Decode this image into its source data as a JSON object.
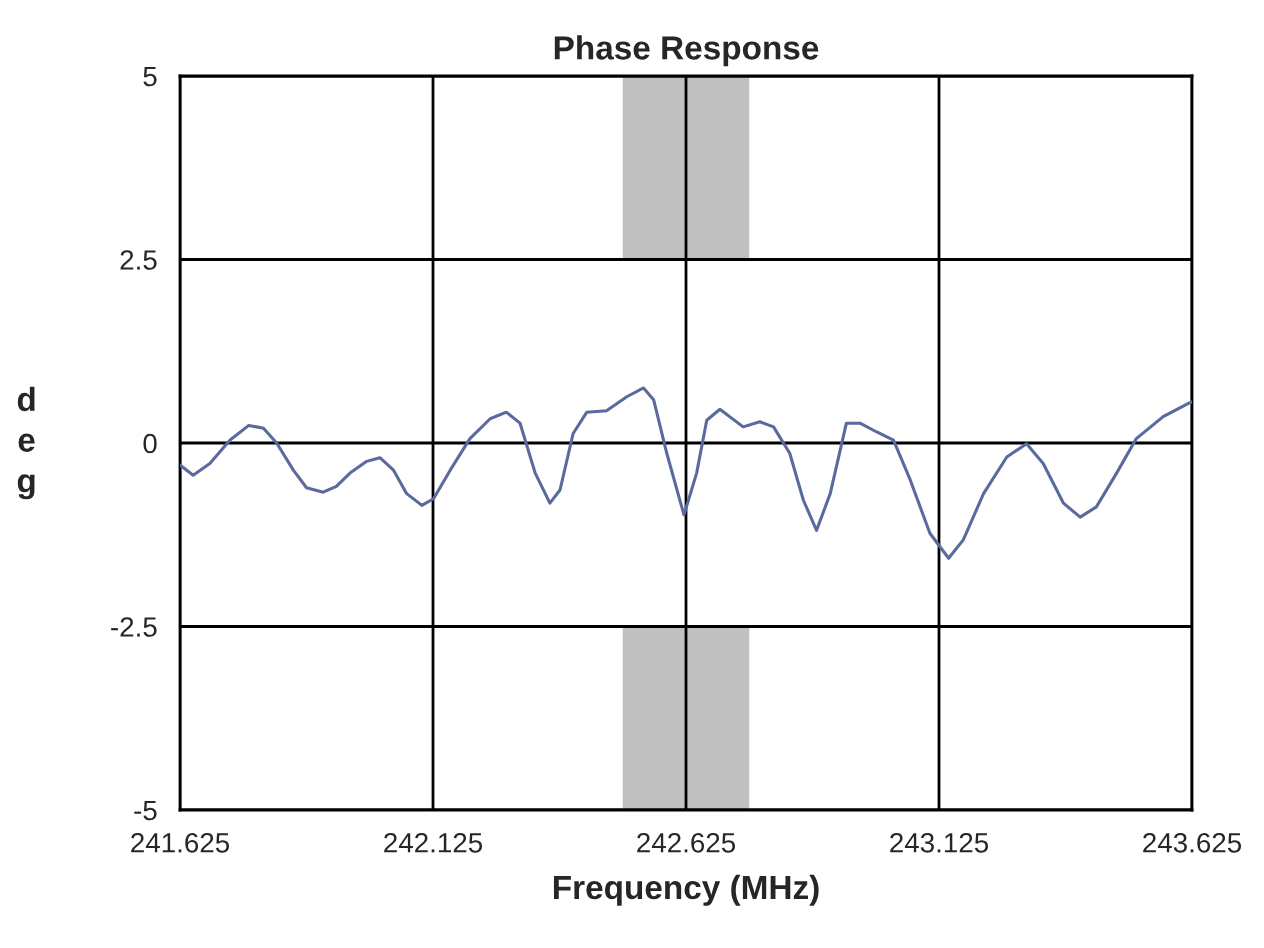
{
  "chart_data": {
    "type": "line",
    "title": "Phase Response",
    "xlabel": "Frequency (MHz)",
    "ylabel": "deg",
    "x": [
      241.625,
      241.651,
      241.684,
      241.724,
      241.761,
      241.79,
      241.816,
      241.849,
      241.875,
      241.908,
      241.934,
      241.961,
      241.994,
      242.02,
      242.047,
      242.073,
      242.103,
      242.126,
      242.159,
      242.198,
      242.238,
      242.27,
      242.297,
      242.327,
      242.356,
      242.376,
      242.402,
      242.429,
      242.468,
      242.508,
      242.541,
      242.561,
      242.587,
      242.621,
      242.646,
      242.666,
      242.692,
      242.738,
      242.771,
      242.798,
      242.83,
      242.857,
      242.883,
      242.91,
      242.942,
      242.969,
      243.002,
      243.035,
      243.068,
      243.107,
      243.144,
      243.173,
      243.213,
      243.259,
      243.298,
      243.331,
      243.371,
      243.404,
      243.436,
      243.476,
      243.515,
      243.568,
      243.618,
      243.625
    ],
    "series": [
      {
        "color": "#5a6a9e",
        "values": [
          -0.3,
          -0.44,
          -0.28,
          0.04,
          0.24,
          0.2,
          0,
          -0.37,
          -0.61,
          -0.67,
          -0.59,
          -0.41,
          -0.25,
          -0.2,
          -0.37,
          -0.69,
          -0.85,
          -0.76,
          -0.37,
          0.06,
          0.33,
          0.42,
          0.27,
          -0.41,
          -0.82,
          -0.64,
          0.13,
          0.42,
          0.44,
          0.63,
          0.75,
          0.59,
          -0.14,
          -0.98,
          -0.41,
          0.31,
          0.46,
          0.22,
          0.29,
          0.22,
          -0.14,
          -0.78,
          -1.19,
          -0.69,
          0.27,
          0.27,
          0.15,
          0.04,
          -0.5,
          -1.23,
          -1.57,
          -1.32,
          -0.69,
          -0.19,
          -0.01,
          -0.28,
          -0.82,
          -1.01,
          -0.87,
          -0.41,
          0.06,
          0.36,
          0.54,
          0.56
        ]
      }
    ],
    "xlim": [
      241.625,
      243.625
    ],
    "xticks": [
      {
        "value": 241.625,
        "label": "241.625"
      },
      {
        "value": 242.125,
        "label": "242.125"
      },
      {
        "value": 242.625,
        "label": "242.625"
      },
      {
        "value": 243.125,
        "label": "243.125"
      },
      {
        "value": 243.625,
        "label": "243.625"
      }
    ],
    "ylim": [
      -5,
      5
    ],
    "yticks": [
      5,
      2.5,
      0,
      -2.5,
      -5
    ],
    "bands": [
      {
        "axis": "x",
        "from": 242.5,
        "to": 242.75,
        "color": "#c0c0c0"
      },
      {
        "axis": "x",
        "from": 242.5,
        "to": 242.75,
        "color": "#c0c0c0"
      }
    ],
    "grid": true,
    "legend": false,
    "marker": "none",
    "line_style": "solid"
  }
}
